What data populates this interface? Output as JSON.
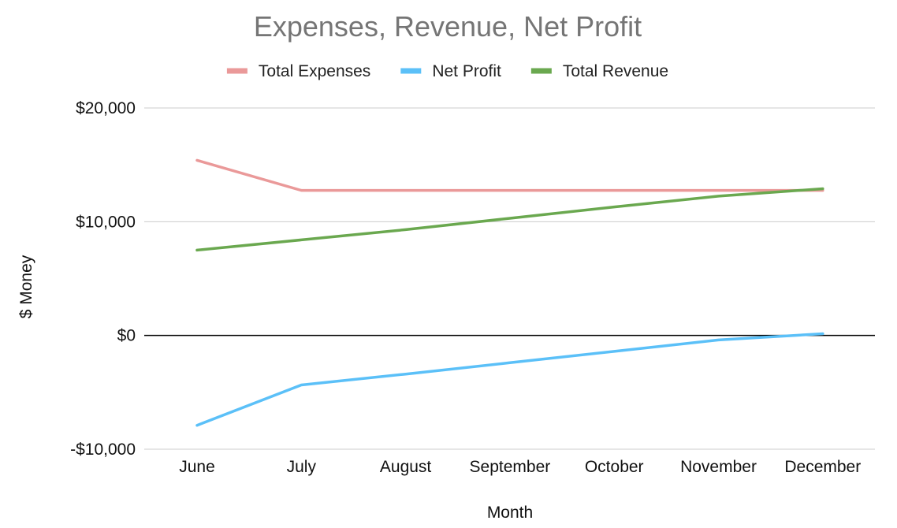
{
  "chart_data": {
    "type": "line",
    "title": "Expenses, Revenue, Net Profit",
    "xlabel": "Month",
    "ylabel": "$ Money",
    "categories": [
      "June",
      "July",
      "August",
      "September",
      "October",
      "November",
      "December"
    ],
    "series": [
      {
        "name": "Total Expenses",
        "color": "#ea9999",
        "values": [
          15400,
          12750,
          12750,
          12750,
          12750,
          12750,
          12750
        ]
      },
      {
        "name": "Net Profit",
        "color": "#5bc0f8",
        "values": [
          -7900,
          -4350,
          -3400,
          -2400,
          -1400,
          -400,
          150
        ]
      },
      {
        "name": "Total Revenue",
        "color": "#6aa84f",
        "values": [
          7500,
          8400,
          9300,
          10300,
          11300,
          12250,
          12900
        ]
      }
    ],
    "ylim": [
      -10000,
      20000
    ],
    "yticks": [
      -10000,
      0,
      10000,
      20000
    ],
    "ytick_labels": [
      "-$10,000",
      "$0",
      "$10,000",
      "$20,000"
    ],
    "grid": true,
    "legend_position": "top"
  }
}
